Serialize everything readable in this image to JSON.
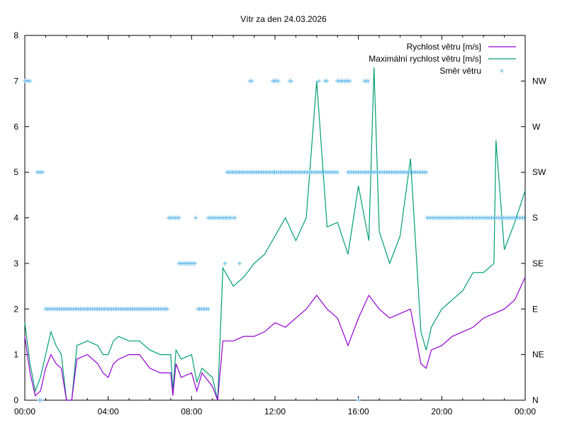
{
  "chart_data": {
    "type": "line",
    "title": "Vítr za den 24.03.2026",
    "xlabel": "",
    "ylabel": "",
    "xlim": [
      0,
      24
    ],
    "ylim": [
      0,
      8
    ],
    "x_tick_labels": [
      "00:00",
      "04:00",
      "08:00",
      "12:00",
      "16:00",
      "20:00",
      "00:00"
    ],
    "y_tick_labels": [
      "0",
      "1",
      "2",
      "3",
      "4",
      "5",
      "6",
      "7",
      "8"
    ],
    "y2_tick_labels": [
      "N",
      "NE",
      "E",
      "SE",
      "S",
      "SW",
      "W",
      "NW"
    ],
    "legend_position": "top-right",
    "colors": {
      "speed": "#9400d3",
      "gust": "#009e73",
      "direction": "#56b4e9"
    },
    "series": [
      {
        "name": "Rychlost větru [m/s]",
        "x": [
          0,
          0.25,
          0.5,
          0.75,
          1,
          1.25,
          1.5,
          1.75,
          2,
          2.25,
          2.5,
          3,
          3.5,
          3.75,
          4,
          4.25,
          4.5,
          5,
          5.5,
          6,
          6.5,
          7,
          7.1,
          7.25,
          7.5,
          8,
          8.25,
          8.5,
          9,
          9.25,
          9.5,
          10,
          10.5,
          11,
          11.5,
          12,
          12.5,
          13,
          13.5,
          14,
          14.5,
          15,
          15.5,
          16,
          16.5,
          17,
          17.5,
          18,
          18.5,
          19,
          19.25,
          19.5,
          20,
          20.5,
          21,
          21.5,
          22,
          22.5,
          23,
          23.5,
          24
        ],
        "values": [
          1.4,
          0.6,
          0.1,
          0.2,
          0.7,
          1.0,
          0.8,
          0.7,
          0,
          0,
          0.9,
          1.0,
          0.8,
          0.6,
          0.5,
          0.8,
          0.9,
          1.0,
          1.0,
          0.7,
          0.6,
          0.6,
          0.1,
          0.8,
          0.5,
          0.6,
          0.2,
          0.6,
          0.3,
          0,
          1.3,
          1.3,
          1.4,
          1.4,
          1.5,
          1.7,
          1.6,
          1.8,
          2.0,
          2.3,
          2.0,
          1.8,
          1.2,
          1.8,
          2.3,
          2.0,
          1.8,
          1.9,
          2.0,
          0.8,
          0.7,
          1.1,
          1.2,
          1.4,
          1.5,
          1.6,
          1.8,
          1.9,
          2.0,
          2.2,
          2.7
        ]
      },
      {
        "name": "Maximální rychlost větru [m/s]",
        "x": [
          0,
          0.25,
          0.5,
          0.75,
          1,
          1.25,
          1.5,
          1.75,
          2,
          2.25,
          2.5,
          3,
          3.5,
          3.75,
          4,
          4.25,
          4.5,
          5,
          5.5,
          6,
          6.5,
          7,
          7.1,
          7.25,
          7.5,
          8,
          8.25,
          8.5,
          9,
          9.25,
          9.5,
          10,
          10.5,
          11,
          11.5,
          12,
          12.5,
          13,
          13.5,
          14,
          14.5,
          15,
          15.5,
          16,
          16.5,
          16.75,
          17,
          17.5,
          18,
          18.5,
          19,
          19.25,
          19.5,
          20,
          20.5,
          21,
          21.5,
          22,
          22.5,
          22.6,
          23,
          23.5,
          24
        ],
        "values": [
          1.7,
          0.8,
          0.2,
          0.5,
          1.0,
          1.5,
          1.2,
          1.0,
          0,
          0,
          1.2,
          1.3,
          1.2,
          1.0,
          1.0,
          1.3,
          1.4,
          1.3,
          1.3,
          1.1,
          1.0,
          1.0,
          0.2,
          1.1,
          0.9,
          1.0,
          0.4,
          0.7,
          0.5,
          0,
          2.9,
          2.5,
          2.7,
          3.0,
          3.2,
          3.6,
          4.0,
          3.5,
          4.0,
          7.0,
          3.8,
          3.9,
          3.2,
          4.7,
          3.5,
          7.3,
          3.7,
          3.0,
          3.6,
          5.3,
          1.5,
          1.1,
          1.6,
          2.0,
          2.2,
          2.4,
          2.8,
          2.8,
          3.0,
          5.7,
          3.3,
          3.9,
          4.6
        ]
      },
      {
        "name": "Směr větru",
        "runs": [
          {
            "from": 0,
            "to": 0.3,
            "dir": 7
          },
          {
            "from": 0.6,
            "to": 0.9,
            "dir": 5
          },
          {
            "from": 1.0,
            "to": 6.9,
            "dir": 2
          },
          {
            "from": 6.9,
            "to": 7.4,
            "dir": 4
          },
          {
            "from": 7.4,
            "to": 8.2,
            "dir": 3
          },
          {
            "from": 8.2,
            "to": 8.2,
            "dir": 4
          },
          {
            "from": 8.3,
            "to": 8.8,
            "dir": 2
          },
          {
            "from": 8.8,
            "to": 9.9,
            "dir": 4
          },
          {
            "from": 9.6,
            "to": 9.6,
            "dir": 3
          },
          {
            "from": 10.3,
            "to": 10.3,
            "dir": 3
          },
          {
            "from": 10.0,
            "to": 10.1,
            "dir": 4
          },
          {
            "from": 9.7,
            "to": 12.0,
            "dir": 5
          },
          {
            "from": 10.8,
            "to": 10.9,
            "dir": 7
          },
          {
            "from": 11.9,
            "to": 12.2,
            "dir": 7
          },
          {
            "from": 12.7,
            "to": 12.8,
            "dir": 7
          },
          {
            "from": 12.0,
            "to": 15.0,
            "dir": 5
          },
          {
            "from": 14.1,
            "to": 14.1,
            "dir": 7
          },
          {
            "from": 14.4,
            "to": 14.5,
            "dir": 7
          },
          {
            "from": 15.0,
            "to": 15.6,
            "dir": 7
          },
          {
            "from": 16.3,
            "to": 16.5,
            "dir": 7
          },
          {
            "from": 15.5,
            "to": 19.3,
            "dir": 5
          },
          {
            "from": 19.3,
            "to": 24,
            "dir": 4
          },
          {
            "from": 16.0,
            "to": 16.0,
            "dir": 0
          },
          {
            "from": 0.7,
            "to": 0.8,
            "dir": 0
          }
        ]
      }
    ]
  }
}
